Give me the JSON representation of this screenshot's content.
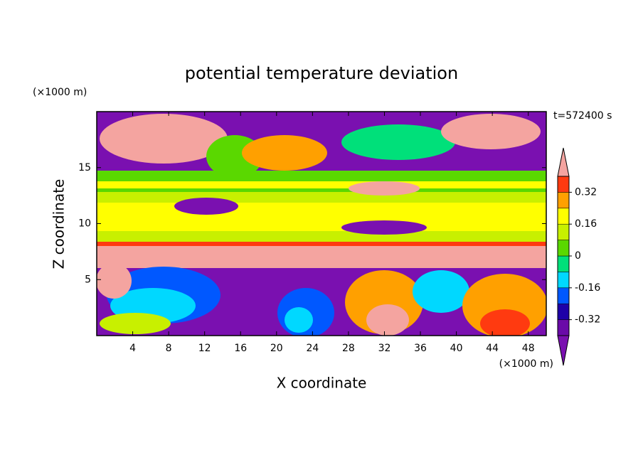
{
  "chart_data": {
    "type": "contour",
    "title": "potential temperature deviation",
    "x_label": "X coordinate",
    "y_label": "Z coordinate",
    "x_unit": "(×1000 m)",
    "y_unit": "(×1000 m)",
    "time_label": "t=572400 s",
    "xlim": [
      0,
      50
    ],
    "xticks": [
      4,
      8,
      12,
      16,
      20,
      24,
      28,
      32,
      36,
      40,
      44,
      48
    ],
    "ylim": [
      0,
      20
    ],
    "yticks": [
      5,
      10,
      15
    ],
    "colorbar": {
      "clim": [
        -0.4,
        0.4
      ],
      "ticks": [
        -0.32,
        -0.16,
        0,
        0.16,
        0.32
      ],
      "colors": [
        "#7a10b0",
        "#6a0aa8",
        "#1e00a8",
        "#0058ff",
        "#00d8ff",
        "#00e07a",
        "#5ad800",
        "#c8f000",
        "#ffff00",
        "#ffa000",
        "#ff3a10",
        "#f4a4a0"
      ]
    }
  }
}
